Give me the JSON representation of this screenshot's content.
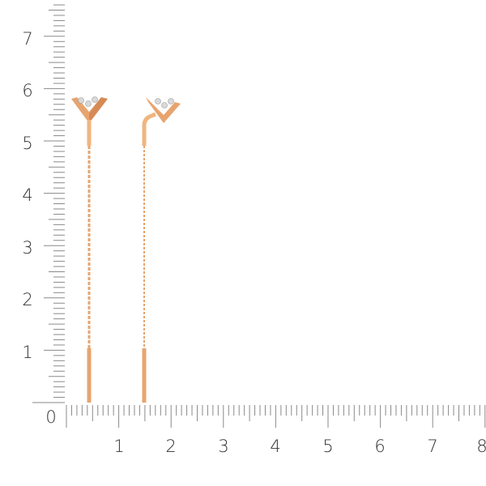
{
  "ruler": {
    "x_labels": [
      "0",
      "1",
      "2",
      "3",
      "4",
      "5",
      "6",
      "7",
      "8"
    ],
    "y_labels": [
      "1",
      "2",
      "3",
      "4",
      "5",
      "6",
      "7"
    ],
    "tick_color": "#8a8a8a",
    "label_color": "#333333"
  },
  "product": {
    "metal_color": "#e8a46e",
    "metal_highlight": "#f7d2a8",
    "metal_shadow": "#c97a45",
    "stone_color": "#d9d9d9"
  }
}
